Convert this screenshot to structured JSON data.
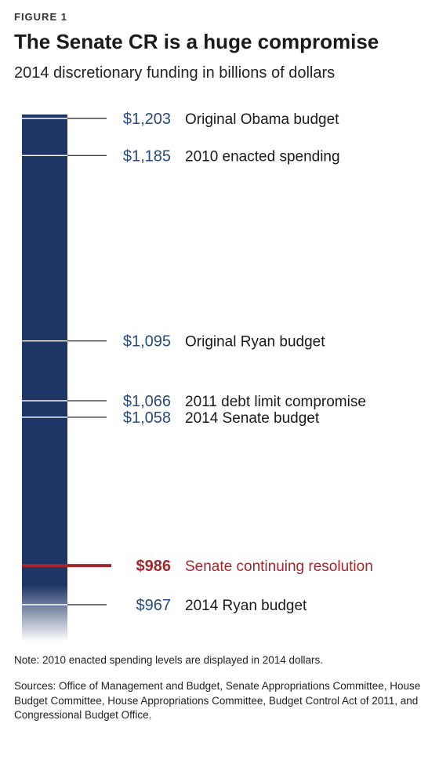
{
  "figure_label": "FIGURE 1",
  "title": "The Senate CR is a huge compromise",
  "subtitle": "2014 discretionary funding in billions of dollars",
  "note": "Note: 2010 enacted spending levels are displayed in 2014 dollars.",
  "sources": "Sources: Office of Management and Budget, Senate Appropriations Committee, House Budget Committee, House Appropriations Committee, Budget Control Act of 2011, and Congressional Budget Office.",
  "colors": {
    "bar": "#1f3566",
    "value_text": "#2b4a7e",
    "highlight": "#a3262c",
    "label_text": "#1a1a1a",
    "leader": "#444444"
  },
  "chart_data": {
    "type": "bar",
    "title": "The Senate CR is a huge compromise",
    "subtitle": "2014 discretionary funding in billions of dollars",
    "ylim": [
      967,
      1203
    ],
    "markers": [
      {
        "value": 1203,
        "value_label": "$1,203",
        "label": "Original Obama budget",
        "highlight": false
      },
      {
        "value": 1185,
        "value_label": "$1,185",
        "label": "2010 enacted spending",
        "highlight": false
      },
      {
        "value": 1095,
        "value_label": "$1,095",
        "label": "Original Ryan budget",
        "highlight": false
      },
      {
        "value": 1066,
        "value_label": "$1,066",
        "label": "2011 debt limit compromise",
        "highlight": false
      },
      {
        "value": 1058,
        "value_label": "$1,058",
        "label": "2014 Senate budget",
        "highlight": false
      },
      {
        "value": 986,
        "value_label": "$986",
        "label": "Senate continuing resolution",
        "highlight": true
      },
      {
        "value": 967,
        "value_label": "$967",
        "label": "2014 Ryan budget",
        "highlight": false
      }
    ]
  }
}
